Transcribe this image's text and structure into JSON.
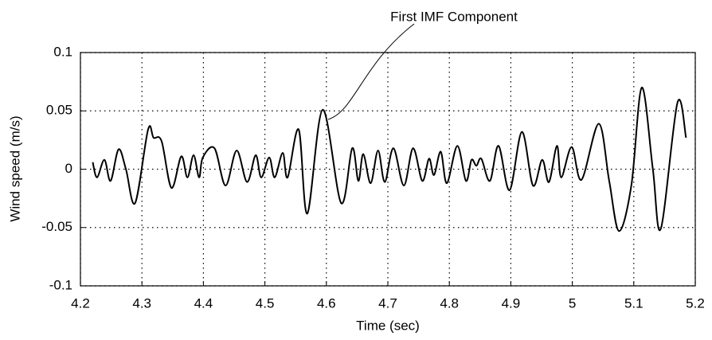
{
  "chart_data": {
    "type": "line",
    "annotation": "First IMF Component",
    "xlabel": "Time (sec)",
    "ylabel": "Wind speed (m/s)",
    "xlim": [
      4.2,
      5.2
    ],
    "xticks": [
      4.2,
      4.3,
      4.4,
      4.5,
      4.6,
      4.7,
      4.8,
      4.9,
      5,
      5.1,
      5.2
    ],
    "ylim": [
      -0.1,
      0.1
    ],
    "yticks": [
      -0.1,
      -0.05,
      0,
      0.05,
      0.1
    ],
    "grid": true,
    "color": "#000000",
    "x": [
      4.22,
      4.227,
      4.239,
      4.249,
      4.262,
      4.274,
      4.289,
      4.31,
      4.319,
      4.332,
      4.348,
      4.364,
      4.374,
      4.384,
      4.393,
      4.399,
      4.418,
      4.436,
      4.454,
      4.471,
      4.485,
      4.494,
      4.507,
      4.516,
      4.529,
      4.537,
      4.555,
      4.569,
      4.594,
      4.624,
      4.642,
      4.652,
      4.66,
      4.672,
      4.684,
      4.695,
      4.709,
      4.726,
      4.741,
      4.756,
      4.767,
      4.775,
      4.786,
      4.796,
      4.813,
      4.827,
      4.836,
      4.844,
      4.852,
      4.866,
      4.88,
      4.898,
      4.918,
      4.936,
      4.951,
      4.962,
      4.975,
      4.982,
      4.999,
      5.015,
      5.043,
      5.06,
      5.076,
      5.096,
      5.113,
      5.131,
      5.144,
      5.171,
      5.185
    ],
    "values": [
      0.006,
      -0.007,
      0.008,
      -0.01,
      0.017,
      0,
      -0.029,
      0.034,
      0.027,
      0.024,
      -0.016,
      0.011,
      -0.007,
      0.012,
      -0.007,
      0.01,
      0.018,
      -0.014,
      0.016,
      -0.011,
      0.012,
      -0.007,
      0.01,
      -0.007,
      0.014,
      -0.007,
      0.034,
      -0.038,
      0.051,
      -0.029,
      0.018,
      -0.01,
      0.013,
      -0.012,
      0.016,
      -0.011,
      0.018,
      -0.014,
      0.018,
      -0.01,
      0.009,
      -0.005,
      0.015,
      -0.012,
      0.02,
      -0.01,
      0.008,
      0.003,
      0.009,
      -0.01,
      0.02,
      -0.018,
      0.032,
      -0.014,
      0.008,
      -0.011,
      0.02,
      -0.007,
      0.019,
      -0.009,
      0.039,
      -0.01,
      -0.053,
      -0.014,
      0.07,
      0,
      -0.051,
      0.057,
      0.027
    ]
  }
}
